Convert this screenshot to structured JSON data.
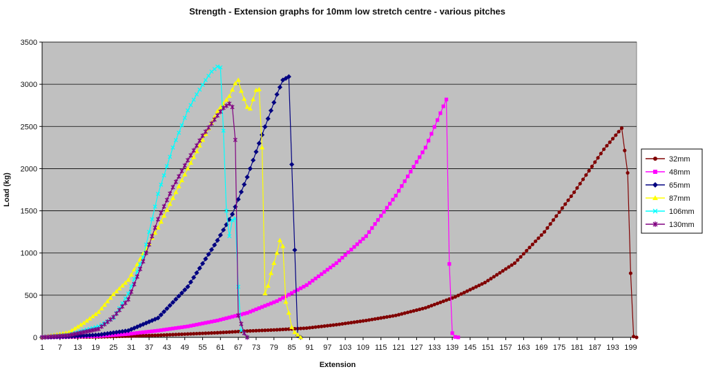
{
  "chart_data": {
    "type": "line",
    "title": "Strength - Extension graphs for 10mm low stretch centre - various pitches",
    "xlabel": "Extension",
    "ylabel": "Load (kg)",
    "ylim": [
      0,
      3500
    ],
    "yticks": [
      0,
      500,
      1000,
      1500,
      2000,
      2500,
      3000,
      3500
    ],
    "xlim": [
      1,
      201
    ],
    "xticks": [
      1,
      7,
      13,
      19,
      25,
      31,
      37,
      43,
      49,
      55,
      61,
      67,
      73,
      79,
      85,
      91,
      97,
      103,
      109,
      115,
      121,
      127,
      133,
      139,
      145,
      151,
      157,
      163,
      169,
      175,
      181,
      187,
      193,
      199
    ],
    "grid": "horizontal",
    "background": "#c0c0c0",
    "legend_position": "right",
    "series": [
      {
        "name": "32mm",
        "color": "#800000",
        "marker": "circle",
        "points": [
          [
            1,
            0
          ],
          [
            20,
            5
          ],
          [
            30,
            15
          ],
          [
            40,
            25
          ],
          [
            50,
            40
          ],
          [
            60,
            55
          ],
          [
            70,
            75
          ],
          [
            80,
            90
          ],
          [
            90,
            110
          ],
          [
            100,
            150
          ],
          [
            110,
            200
          ],
          [
            120,
            260
          ],
          [
            130,
            350
          ],
          [
            140,
            480
          ],
          [
            150,
            650
          ],
          [
            160,
            880
          ],
          [
            170,
            1250
          ],
          [
            180,
            1720
          ],
          [
            190,
            2230
          ],
          [
            196,
            2480
          ],
          [
            198,
            1950
          ],
          [
            199,
            760
          ],
          [
            200,
            10
          ],
          [
            201,
            0
          ]
        ]
      },
      {
        "name": "48mm",
        "color": "#ff00ff",
        "marker": "square",
        "points": [
          [
            1,
            0
          ],
          [
            20,
            15
          ],
          [
            30,
            40
          ],
          [
            40,
            80
          ],
          [
            50,
            130
          ],
          [
            60,
            200
          ],
          [
            70,
            290
          ],
          [
            80,
            430
          ],
          [
            90,
            620
          ],
          [
            100,
            880
          ],
          [
            110,
            1200
          ],
          [
            120,
            1680
          ],
          [
            130,
            2250
          ],
          [
            137,
            2820
          ],
          [
            138,
            870
          ],
          [
            139,
            50
          ],
          [
            140,
            5
          ],
          [
            141,
            0
          ]
        ]
      },
      {
        "name": "65mm",
        "color": "#000080",
        "marker": "diamond",
        "points": [
          [
            1,
            0
          ],
          [
            10,
            10
          ],
          [
            20,
            30
          ],
          [
            30,
            80
          ],
          [
            40,
            230
          ],
          [
            50,
            600
          ],
          [
            60,
            1150
          ],
          [
            65,
            1460
          ],
          [
            70,
            1900
          ],
          [
            75,
            2400
          ],
          [
            80,
            2880
          ],
          [
            82,
            3050
          ],
          [
            84,
            3090
          ],
          [
            85,
            2050
          ],
          [
            87,
            20
          ],
          [
            88,
            0
          ]
        ]
      },
      {
        "name": "87mm",
        "color": "#ffff00",
        "marker": "triangle",
        "points": [
          [
            1,
            0
          ],
          [
            10,
            60
          ],
          [
            15,
            170
          ],
          [
            20,
            300
          ],
          [
            25,
            510
          ],
          [
            30,
            680
          ],
          [
            40,
            1300
          ],
          [
            50,
            2000
          ],
          [
            60,
            2680
          ],
          [
            64,
            2860
          ],
          [
            66,
            3010
          ],
          [
            67,
            3050
          ],
          [
            68,
            2920
          ],
          [
            70,
            2730
          ],
          [
            71,
            2710
          ],
          [
            73,
            2930
          ],
          [
            74,
            2940
          ],
          [
            75,
            2250
          ],
          [
            76,
            520
          ],
          [
            77,
            610
          ],
          [
            78,
            760
          ],
          [
            79,
            880
          ],
          [
            80,
            1000
          ],
          [
            81,
            1150
          ],
          [
            82,
            1080
          ],
          [
            83,
            420
          ],
          [
            84,
            290
          ],
          [
            85,
            120
          ],
          [
            86,
            60
          ],
          [
            87,
            30
          ],
          [
            88,
            0
          ]
        ]
      },
      {
        "name": "106mm",
        "color": "#00ffff",
        "marker": "x",
        "points": [
          [
            1,
            0
          ],
          [
            10,
            30
          ],
          [
            20,
            130
          ],
          [
            25,
            230
          ],
          [
            30,
            520
          ],
          [
            35,
            950
          ],
          [
            40,
            1700
          ],
          [
            45,
            2250
          ],
          [
            50,
            2690
          ],
          [
            53,
            2880
          ],
          [
            56,
            3050
          ],
          [
            58,
            3150
          ],
          [
            60,
            3210
          ],
          [
            61,
            3200
          ],
          [
            62,
            2450
          ],
          [
            63,
            1500
          ],
          [
            64,
            1200
          ],
          [
            65,
            1390
          ],
          [
            66,
            1410
          ],
          [
            67,
            600
          ],
          [
            68,
            80
          ],
          [
            69,
            50
          ],
          [
            70,
            0
          ]
        ]
      },
      {
        "name": "130mm",
        "color": "#800080",
        "marker": "star",
        "points": [
          [
            1,
            0
          ],
          [
            10,
            25
          ],
          [
            20,
            100
          ],
          [
            25,
            240
          ],
          [
            30,
            450
          ],
          [
            35,
            900
          ],
          [
            40,
            1400
          ],
          [
            45,
            1780
          ],
          [
            50,
            2100
          ],
          [
            55,
            2390
          ],
          [
            60,
            2630
          ],
          [
            62,
            2720
          ],
          [
            64,
            2770
          ],
          [
            65,
            2730
          ],
          [
            66,
            2340
          ],
          [
            67,
            260
          ],
          [
            68,
            160
          ],
          [
            69,
            50
          ],
          [
            70,
            0
          ]
        ]
      }
    ]
  }
}
